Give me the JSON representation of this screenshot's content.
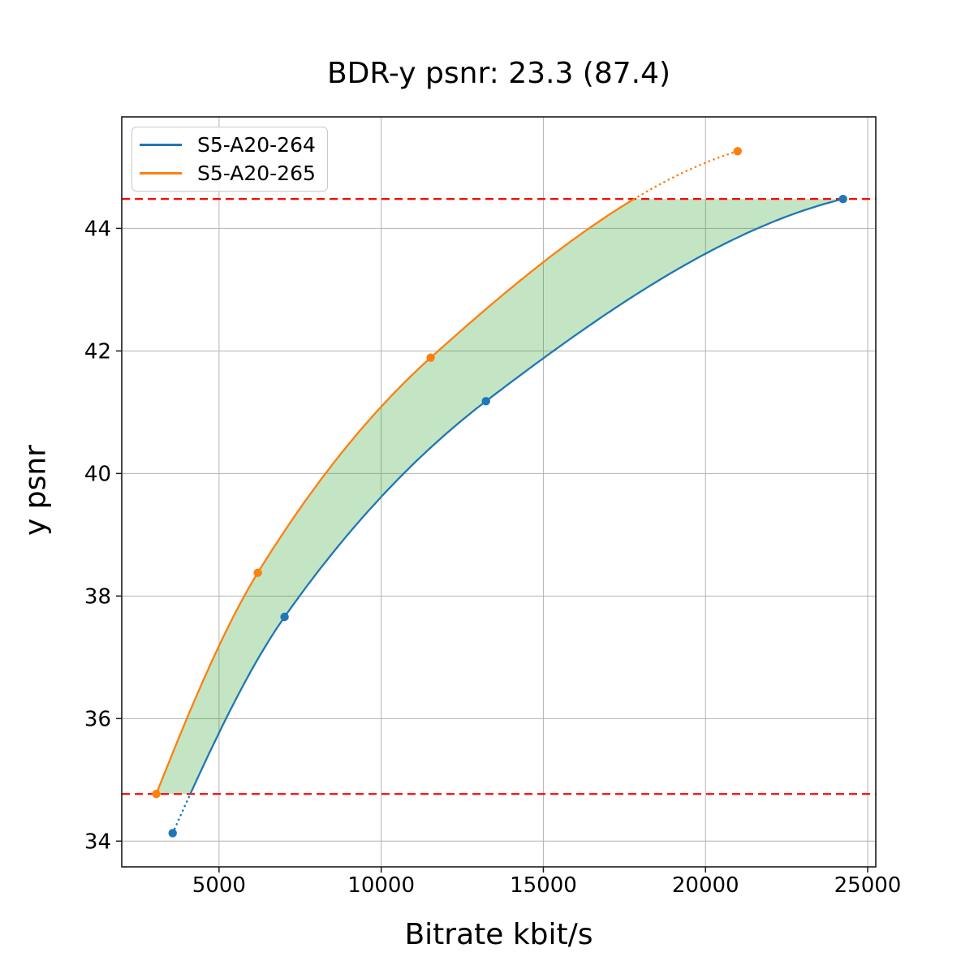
{
  "title": "BDR-y psnr: 23.3 (87.4)",
  "chart_data": {
    "type": "line",
    "title": "BDR-y psnr: 23.3 (87.4)",
    "xlabel": "Bitrate kbit/s",
    "ylabel": "y psnr",
    "xlim": [
      2000,
      25250
    ],
    "ylim": [
      33.58,
      45.82
    ],
    "x_ticks": [
      5000,
      10000,
      15000,
      20000,
      25000
    ],
    "y_ticks": [
      34,
      36,
      38,
      40,
      42,
      44
    ],
    "grid": true,
    "legend_position": "upper left",
    "series": [
      {
        "name": "S5-A20-264",
        "color": "#1f77b4",
        "x": [
          3570,
          7020,
          13230,
          24240
        ],
        "y": [
          34.13,
          37.66,
          41.18,
          44.48
        ]
      },
      {
        "name": "S5-A20-265",
        "color": "#ff7f0e",
        "x": [
          3065,
          6195,
          11525,
          20990
        ],
        "y": [
          34.77,
          38.38,
          41.89,
          45.26
        ]
      }
    ],
    "overlap_bounds": {
      "lower_psnr": 34.77,
      "upper_psnr": 44.48,
      "line_color": "#ff0000",
      "line_style": "dashed"
    },
    "fill_between": {
      "color": "#2ca02c",
      "opacity": 0.28
    },
    "outside_overlap_line_style": "dotted",
    "colors": {
      "grid": "#b3b3b3",
      "spine": "#1a1a1a",
      "background": "#ffffff"
    }
  }
}
